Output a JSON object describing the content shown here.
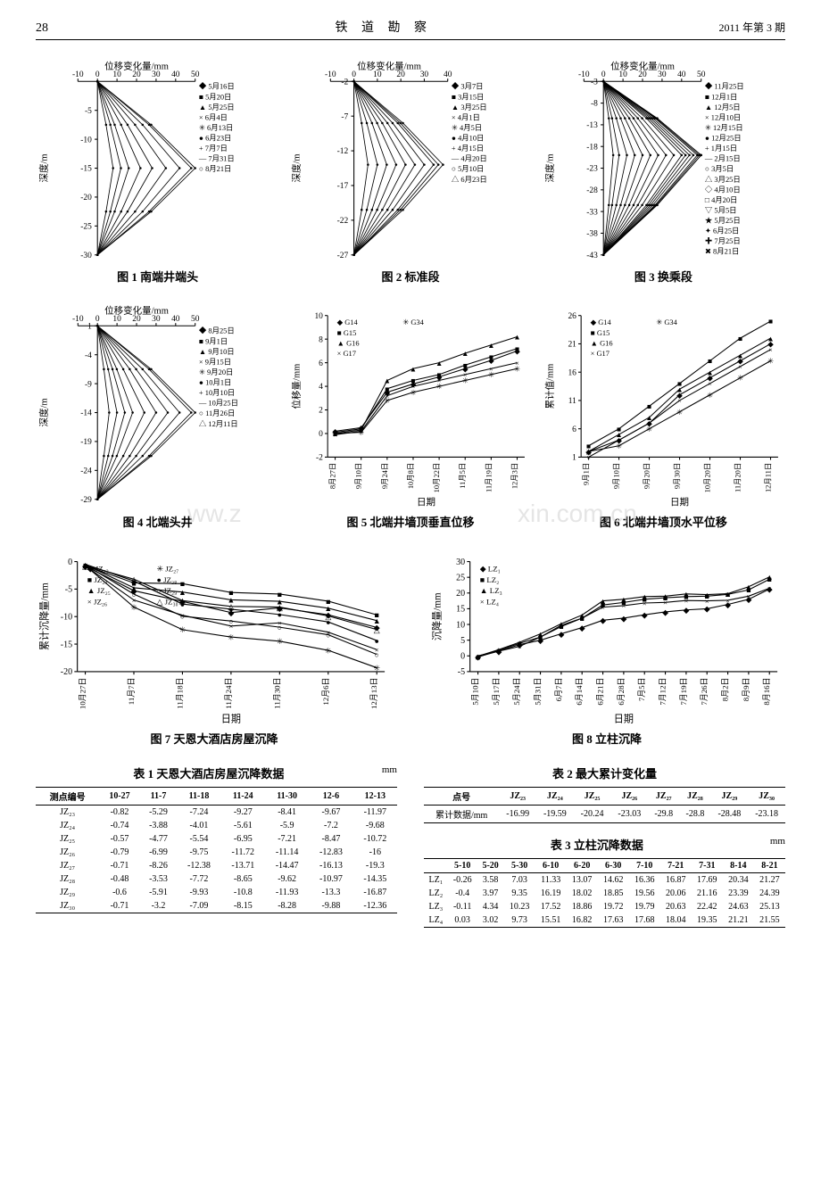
{
  "header": {
    "page_num": "28",
    "journal": "铁 道 勘 察",
    "issue": "2011 年第 3 期"
  },
  "watermarks": [
    "ww.z",
    "xin.com.cn"
  ],
  "chart1": {
    "type": "line",
    "title": "图 1  南端井端头",
    "x_label": "位移变化量/mm",
    "y_label": "深度/m",
    "xlim": [
      -10,
      50
    ],
    "xticks": [
      -10,
      0,
      10,
      20,
      30,
      40,
      50
    ],
    "ylim": [
      -30,
      0
    ],
    "yticks": [
      -5,
      -10,
      -15,
      -20,
      -25,
      -30
    ],
    "legend": [
      "5月16日",
      "5月20日",
      "5月25日",
      "6月4日",
      "6月13日",
      "6月23日",
      "7月7日",
      "7月31日",
      "8月21日"
    ],
    "line_color": "#000000",
    "bg": "#ffffff",
    "fontsize": 10,
    "series_peaks_x": [
      8,
      12,
      16,
      22,
      28,
      35,
      42,
      48,
      50
    ],
    "peak_depth": -15
  },
  "chart2": {
    "type": "line",
    "title": "图 2  标准段",
    "x_label": "位移变化量/mm",
    "y_label": "深度/m",
    "xlim": [
      -10,
      40
    ],
    "xticks": [
      -10,
      0,
      10,
      20,
      30,
      40
    ],
    "ylim": [
      -27,
      -2
    ],
    "yticks": [
      -2,
      -7,
      -12,
      -17,
      -22,
      -27
    ],
    "legend": [
      "3月7日",
      "3月15日",
      "3月25日",
      "4月1日",
      "4月5日",
      "4月10日",
      "4月15日",
      "4月20日",
      "5月10日",
      "6月23日"
    ],
    "line_color": "#000000",
    "bg": "#ffffff",
    "fontsize": 10,
    "series_peaks_x": [
      6,
      10,
      14,
      18,
      22,
      26,
      30,
      34,
      36,
      38
    ],
    "peak_depth": -14
  },
  "chart3": {
    "type": "line",
    "title": "图 3  换乘段",
    "x_label": "位移变化量/mm",
    "y_label": "深度/m",
    "xlim": [
      -10,
      50
    ],
    "xticks": [
      -10,
      0,
      10,
      20,
      30,
      40,
      50
    ],
    "ylim": [
      -43,
      -3
    ],
    "yticks": [
      -3,
      -8,
      -13,
      -18,
      -23,
      -28,
      -33,
      -38,
      -43
    ],
    "legend": [
      "11月25日",
      "12月1日",
      "12月5日",
      "12月10日",
      "12月15日",
      "12月25日",
      "1月15日",
      "2月15日",
      "3月5日",
      "3月25日",
      "4月10日",
      "4月20日",
      "5月5日",
      "5月25日",
      "6月25日",
      "7月25日",
      "8月21日"
    ],
    "line_color": "#000000",
    "bg": "#ffffff",
    "fontsize": 10,
    "series_peaks_x": [
      5,
      8,
      12,
      16,
      20,
      24,
      28,
      32,
      36,
      40,
      42,
      44,
      46,
      48,
      49,
      50,
      50
    ],
    "peak_depth": -20
  },
  "chart4": {
    "type": "line",
    "title": "图 4  北端头井",
    "x_label": "位移变化量/mm",
    "y_label": "深度/m",
    "xlim": [
      -10,
      50
    ],
    "xticks": [
      -10,
      0,
      10,
      20,
      30,
      40,
      50
    ],
    "ylim": [
      -29,
      1
    ],
    "yticks": [
      1,
      -4,
      -9,
      -14,
      -19,
      -24,
      -29
    ],
    "legend": [
      "8月25日",
      "9月1日",
      "9月10日",
      "9月15日",
      "9月20日",
      "10月1日",
      "10月10日",
      "10月25日",
      "11月26日",
      "12月11日"
    ],
    "line_color": "#000000",
    "bg": "#ffffff",
    "fontsize": 10,
    "series_peaks_x": [
      6,
      10,
      14,
      18,
      24,
      30,
      36,
      42,
      48,
      50
    ],
    "peak_depth": -14
  },
  "chart5": {
    "type": "line",
    "title": "图 5  北端井墙顶垂直位移",
    "x_label": "日期",
    "y_label": "位移量/mm",
    "ylim": [
      -2,
      10
    ],
    "yticks": [
      -2,
      0,
      2,
      4,
      6,
      8,
      10
    ],
    "x_categories": [
      "8月27日",
      "9月10日",
      "9月24日",
      "10月8日",
      "10月22日",
      "11月5日",
      "11月19日",
      "12月3日"
    ],
    "legend": [
      "G14",
      "G15",
      "G16",
      "G17",
      "G34"
    ],
    "markers": [
      "diamond",
      "square",
      "triangle",
      "x",
      "star"
    ],
    "line_color": "#000000",
    "bg": "#ffffff",
    "fontsize": 10,
    "series": {
      "G14": [
        0.2,
        0.5,
        3.5,
        4.2,
        4.8,
        5.5,
        6.2,
        7.0
      ],
      "G15": [
        0.1,
        0.4,
        3.8,
        4.5,
        5.0,
        5.8,
        6.5,
        7.2
      ],
      "G16": [
        0.0,
        0.3,
        4.5,
        5.5,
        6.0,
        6.8,
        7.5,
        8.2
      ],
      "G17": [
        -0.1,
        0.2,
        3.2,
        4.0,
        4.5,
        5.0,
        5.5,
        6.0
      ],
      "G34": [
        0.0,
        0.1,
        2.8,
        3.5,
        4.0,
        4.5,
        5.0,
        5.5
      ]
    }
  },
  "chart6": {
    "type": "line",
    "title": "图 6  北端井墙顶水平位移",
    "x_label": "日期",
    "y_label": "累计值/mm",
    "ylim": [
      1,
      26
    ],
    "yticks": [
      1,
      6,
      11,
      16,
      21,
      26
    ],
    "x_categories": [
      "9月1日",
      "9月10日",
      "9月20日",
      "9月30日",
      "10月20日",
      "11月20日",
      "12月11日"
    ],
    "legend": [
      "G14",
      "G15",
      "G16",
      "G17",
      "G34"
    ],
    "markers": [
      "diamond",
      "square",
      "triangle",
      "x",
      "star"
    ],
    "line_color": "#000000",
    "bg": "#ffffff",
    "fontsize": 10,
    "series": {
      "G14": [
        2,
        4,
        7,
        12,
        15,
        18,
        21
      ],
      "G15": [
        3,
        6,
        10,
        14,
        18,
        22,
        25
      ],
      "G16": [
        2,
        5,
        8,
        13,
        16,
        19,
        22
      ],
      "G17": [
        1,
        4,
        7,
        11,
        14,
        17,
        20
      ],
      "G34": [
        2,
        3,
        6,
        9,
        12,
        15,
        18
      ]
    }
  },
  "chart7": {
    "type": "line",
    "title": "图 7  天恩大酒店房屋沉降",
    "x_label": "日期",
    "y_label": "累计沉降量/mm",
    "ylim": [
      -20,
      0
    ],
    "yticks": [
      0,
      -5,
      -10,
      -15,
      -20
    ],
    "x_categories": [
      "10月27日",
      "11月7日",
      "11月18日",
      "11月24日",
      "11月30日",
      "12月6日",
      "12月13日"
    ],
    "legend": [
      "JZ₂₃",
      "JZ₂₄",
      "JZ₂₅",
      "JZ₂₆",
      "JZ₂₇",
      "JZ₂₈",
      "JZ₂₉",
      "JZ₃₀"
    ],
    "line_color": "#000000",
    "bg": "#ffffff",
    "fontsize": 10,
    "series": {
      "JZ23": [
        -0.82,
        -5.29,
        -7.24,
        -9.27,
        -8.41,
        -9.67,
        -11.97
      ],
      "JZ24": [
        -0.74,
        -3.88,
        -4.01,
        -5.61,
        -5.9,
        -7.2,
        -9.68
      ],
      "JZ25": [
        -0.57,
        -4.77,
        -5.54,
        -6.95,
        -7.21,
        -8.47,
        -10.72
      ],
      "JZ26": [
        -0.79,
        -6.99,
        -9.75,
        -11.72,
        -11.14,
        -12.83,
        -16
      ],
      "JZ27": [
        -0.71,
        -8.26,
        -12.38,
        -13.71,
        -14.47,
        -16.13,
        -19.3
      ],
      "JZ28": [
        -0.48,
        -3.53,
        -7.72,
        -8.65,
        -9.62,
        -10.97,
        -14.35
      ],
      "JZ29": [
        -0.6,
        -5.91,
        -9.93,
        -10.8,
        -11.93,
        -13.3,
        -16.87
      ],
      "JZ30": [
        -0.71,
        -3.2,
        -7.09,
        -8.15,
        -8.28,
        -9.88,
        -12.36
      ]
    }
  },
  "chart8": {
    "type": "line",
    "title": "图 8  立柱沉降",
    "x_label": "日期",
    "y_label": "沉降量/mm",
    "ylim": [
      -5,
      30
    ],
    "yticks": [
      -5,
      0,
      5,
      10,
      15,
      20,
      25,
      30
    ],
    "x_categories": [
      "5月10日",
      "5月17日",
      "5月24日",
      "5月31日",
      "6月7日",
      "6月14日",
      "6月21日",
      "6月28日",
      "7月5日",
      "7月12日",
      "7月19日",
      "7月26日",
      "8月2日",
      "8月9日",
      "8月16日"
    ],
    "legend": [
      "LZ₁",
      "LZ₂",
      "LZ₃",
      "LZ₄"
    ],
    "line_color": "#000000",
    "bg": "#ffffff",
    "fontsize": 10,
    "series": {
      "LZ1": [
        -0.26,
        1.5,
        3.58,
        5,
        7.03,
        9,
        11.33,
        12,
        13.07,
        14,
        14.62,
        15,
        16.36,
        18,
        21.27
      ],
      "LZ2": [
        -0.4,
        1.8,
        3.97,
        6,
        9.35,
        12,
        16.19,
        17,
        18.02,
        18.5,
        18.85,
        19,
        19.56,
        21,
        24.39
      ],
      "LZ3": [
        -0.11,
        2,
        4.34,
        7,
        10.23,
        13,
        17.52,
        18,
        18.86,
        19,
        19.72,
        19.5,
        19.79,
        22,
        25.13
      ],
      "LZ4": [
        0.03,
        1.5,
        3.02,
        6,
        9.73,
        12,
        15.51,
        16,
        16.82,
        17,
        17.63,
        17.5,
        17.68,
        19,
        21.55
      ]
    }
  },
  "table1": {
    "title": "表 1  天恩大酒店房屋沉降数据",
    "unit": "mm",
    "columns": [
      "测点编号",
      "10-27",
      "11-7",
      "11-18",
      "11-24",
      "11-30",
      "12-6",
      "12-13"
    ],
    "rows": [
      [
        "JZ₂₃",
        "-0.82",
        "-5.29",
        "-7.24",
        "-9.27",
        "-8.41",
        "-9.67",
        "-11.97"
      ],
      [
        "JZ₂₄",
        "-0.74",
        "-3.88",
        "-4.01",
        "-5.61",
        "-5.9",
        "-7.2",
        "-9.68"
      ],
      [
        "JZ₂₅",
        "-0.57",
        "-4.77",
        "-5.54",
        "-6.95",
        "-7.21",
        "-8.47",
        "-10.72"
      ],
      [
        "JZ₂₆",
        "-0.79",
        "-6.99",
        "-9.75",
        "-11.72",
        "-11.14",
        "-12.83",
        "-16"
      ],
      [
        "JZ₂₇",
        "-0.71",
        "-8.26",
        "-12.38",
        "-13.71",
        "-14.47",
        "-16.13",
        "-19.3"
      ],
      [
        "JZ₂₈",
        "-0.48",
        "-3.53",
        "-7.72",
        "-8.65",
        "-9.62",
        "-10.97",
        "-14.35"
      ],
      [
        "JZ₂₉",
        "-0.6",
        "-5.91",
        "-9.93",
        "-10.8",
        "-11.93",
        "-13.3",
        "-16.87"
      ],
      [
        "JZ₃₀",
        "-0.71",
        "-3.2",
        "-7.09",
        "-8.15",
        "-8.28",
        "-9.88",
        "-12.36"
      ]
    ]
  },
  "table2": {
    "title": "表 2  最大累计变化量",
    "columns": [
      "点号",
      "JZ₂₃",
      "JZ₂₄",
      "JZ₂₅",
      "JZ₂₆",
      "JZ₂₇",
      "JZ₂₈",
      "JZ₂₉",
      "JZ₃₀"
    ],
    "rows": [
      [
        "累计数据/mm",
        "-16.99",
        "-19.59",
        "-20.24",
        "-23.03",
        "-29.8",
        "-28.8",
        "-28.48",
        "-23.18"
      ]
    ]
  },
  "table3": {
    "title": "表 3  立柱沉降数据",
    "unit": "mm",
    "columns": [
      "",
      "5-10",
      "5-20",
      "5-30",
      "6-10",
      "6-20",
      "6-30",
      "7-10",
      "7-21",
      "7-31",
      "8-14",
      "8-21"
    ],
    "rows": [
      [
        "LZ₁",
        "-0.26",
        "3.58",
        "7.03",
        "11.33",
        "13.07",
        "14.62",
        "16.36",
        "16.87",
        "17.69",
        "20.34",
        "21.27"
      ],
      [
        "LZ₂",
        "-0.4",
        "3.97",
        "9.35",
        "16.19",
        "18.02",
        "18.85",
        "19.56",
        "20.06",
        "21.16",
        "23.39",
        "24.39"
      ],
      [
        "LZ₃",
        "-0.11",
        "4.34",
        "10.23",
        "17.52",
        "18.86",
        "19.72",
        "19.79",
        "20.63",
        "22.42",
        "24.63",
        "25.13"
      ],
      [
        "LZ₄",
        "0.03",
        "3.02",
        "9.73",
        "15.51",
        "16.82",
        "17.63",
        "17.68",
        "18.04",
        "19.35",
        "21.21",
        "21.55"
      ]
    ]
  }
}
